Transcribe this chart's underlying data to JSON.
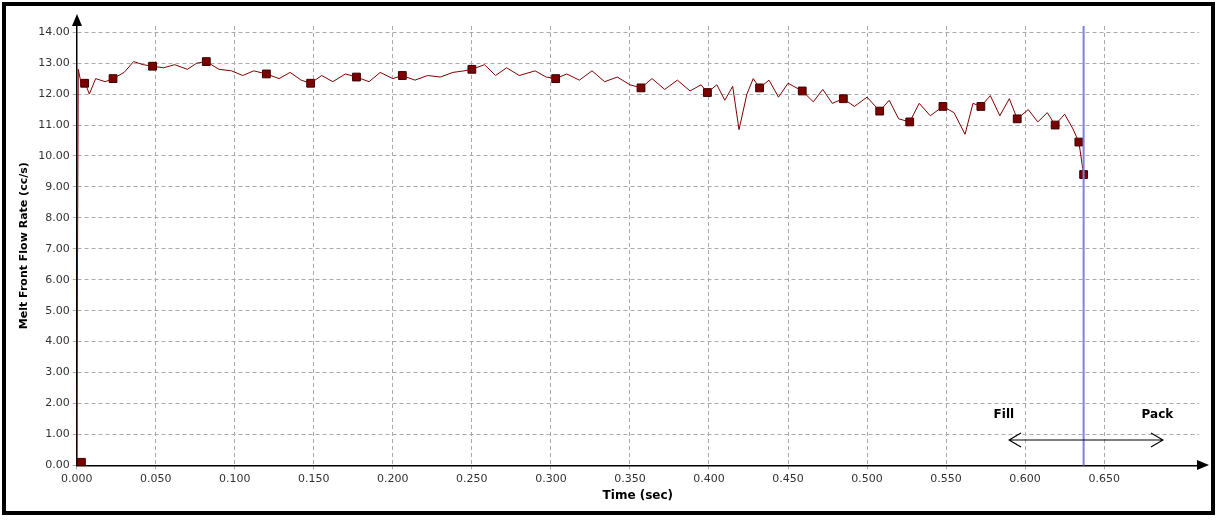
{
  "chart_data": {
    "type": "line",
    "xlabel": "Time (sec)",
    "ylabel": "Melt Front Flow Rate (cc/s)",
    "xlim": [
      0,
      0.71
    ],
    "ylim": [
      0,
      14.2
    ],
    "xticks": [
      {
        "value": 0,
        "label": "0.000"
      },
      {
        "value": 0.05,
        "label": "0.050"
      },
      {
        "value": 0.1,
        "label": "0.100"
      },
      {
        "value": 0.15,
        "label": "0.150"
      },
      {
        "value": 0.2,
        "label": "0.200"
      },
      {
        "value": 0.25,
        "label": "0.250"
      },
      {
        "value": 0.3,
        "label": "0.300"
      },
      {
        "value": 0.35,
        "label": "0.350"
      },
      {
        "value": 0.4,
        "label": "0.400"
      },
      {
        "value": 0.45,
        "label": "0.450"
      },
      {
        "value": 0.5,
        "label": "0.500"
      },
      {
        "value": 0.55,
        "label": "0.550"
      },
      {
        "value": 0.6,
        "label": "0.600"
      },
      {
        "value": 0.65,
        "label": "0.650"
      }
    ],
    "yticks": [
      {
        "value": 0,
        "label": "0.00"
      },
      {
        "value": 1,
        "label": "1.00"
      },
      {
        "value": 2,
        "label": "2.00"
      },
      {
        "value": 3,
        "label": "3.00"
      },
      {
        "value": 4,
        "label": "4.00"
      },
      {
        "value": 5,
        "label": "5.00"
      },
      {
        "value": 6,
        "label": "6.00"
      },
      {
        "value": 7,
        "label": "7.00"
      },
      {
        "value": 8,
        "label": "8.00"
      },
      {
        "value": 9,
        "label": "9.00"
      },
      {
        "value": 10,
        "label": "10.00"
      },
      {
        "value": 11,
        "label": "11.00"
      },
      {
        "value": 12,
        "label": "12.00"
      },
      {
        "value": 13,
        "label": "13.00"
      },
      {
        "value": 14,
        "label": "14.00"
      }
    ],
    "grid": true,
    "legend": false,
    "series": [
      {
        "marker": "none",
        "color": "#800000",
        "x": [
          0,
          0.001,
          0.003,
          0.005,
          0.008,
          0.012,
          0.018,
          0.023,
          0.03,
          0.036,
          0.042,
          0.048,
          0.055,
          0.062,
          0.07,
          0.076,
          0.082,
          0.09,
          0.098,
          0.105,
          0.112,
          0.12,
          0.128,
          0.135,
          0.142,
          0.148,
          0.155,
          0.162,
          0.17,
          0.177,
          0.185,
          0.192,
          0.2,
          0.206,
          0.214,
          0.222,
          0.23,
          0.238,
          0.245,
          0.25,
          0.258,
          0.265,
          0.272,
          0.28,
          0.29,
          0.297,
          0.303,
          0.31,
          0.318,
          0.326,
          0.334,
          0.342,
          0.35,
          0.357,
          0.364,
          0.372,
          0.38,
          0.388,
          0.395,
          0.399,
          0.405,
          0.41,
          0.415,
          0.419,
          0.424,
          0.428,
          0.432,
          0.438,
          0.444,
          0.45,
          0.459,
          0.466,
          0.472,
          0.478,
          0.485,
          0.492,
          0.5,
          0.508,
          0.514,
          0.52,
          0.527,
          0.533,
          0.54,
          0.548,
          0.555,
          0.562,
          0.567,
          0.572,
          0.578,
          0.584,
          0.59,
          0.595,
          0.602,
          0.608,
          0.614,
          0.619,
          0.625,
          0.63,
          0.634,
          0.637
        ],
        "values": [
          0,
          12.8,
          12.3,
          12.4,
          12.0,
          12.5,
          12.4,
          12.5,
          12.7,
          13.05,
          12.95,
          12.9,
          12.85,
          12.95,
          12.8,
          13.0,
          13.05,
          12.8,
          12.75,
          12.6,
          12.75,
          12.65,
          12.5,
          12.7,
          12.45,
          12.35,
          12.6,
          12.4,
          12.65,
          12.55,
          12.4,
          12.7,
          12.5,
          12.6,
          12.45,
          12.6,
          12.55,
          12.7,
          12.75,
          12.8,
          12.95,
          12.6,
          12.85,
          12.6,
          12.75,
          12.55,
          12.5,
          12.65,
          12.45,
          12.75,
          12.4,
          12.55,
          12.3,
          12.2,
          12.5,
          12.15,
          12.45,
          12.1,
          12.3,
          12.05,
          12.3,
          11.8,
          12.25,
          10.85,
          12.0,
          12.5,
          12.2,
          12.45,
          11.9,
          12.35,
          12.1,
          11.75,
          12.15,
          11.7,
          11.85,
          11.6,
          11.9,
          11.45,
          11.8,
          11.2,
          11.1,
          11.7,
          11.3,
          11.6,
          11.4,
          10.7,
          11.7,
          11.6,
          11.95,
          11.3,
          11.85,
          11.2,
          11.5,
          11.1,
          11.4,
          11.0,
          11.35,
          10.9,
          10.45,
          9.4
        ]
      },
      {
        "type": "scatter",
        "marker": "square",
        "color": "#7a0000",
        "x": [
          0.003,
          0.005,
          0.023,
          0.048,
          0.082,
          0.12,
          0.148,
          0.177,
          0.206,
          0.25,
          0.303,
          0.357,
          0.399,
          0.432,
          0.459,
          0.485,
          0.508,
          0.527,
          0.548,
          0.572,
          0.595,
          0.619,
          0.634,
          0.637
        ],
        "values": [
          0.1,
          12.35,
          12.5,
          12.9,
          13.05,
          12.65,
          12.35,
          12.55,
          12.6,
          12.8,
          12.5,
          12.2,
          12.05,
          12.2,
          12.1,
          11.85,
          11.45,
          11.1,
          11.6,
          11.6,
          11.2,
          11.0,
          10.45,
          9.4
        ]
      }
    ],
    "ref_lines": [
      {
        "axis": "x",
        "value": 0.637,
        "color": "#8080e0",
        "line_style": "solid"
      }
    ],
    "annotations": [
      "Fill",
      "Pack"
    ]
  }
}
